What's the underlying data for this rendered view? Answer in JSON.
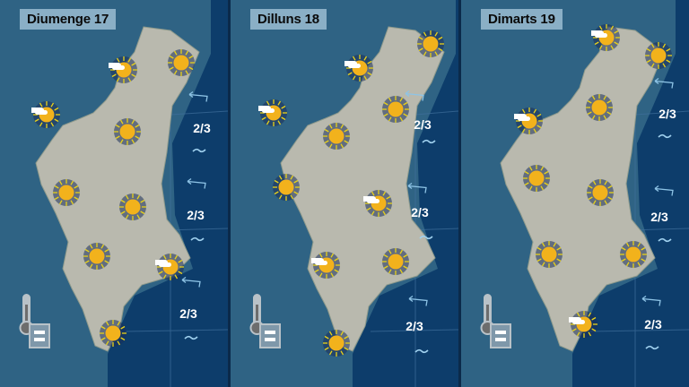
{
  "colors": {
    "sea": "#0d3d6b",
    "inland": "#2f6384",
    "land": "#b9b9ae",
    "sun": "#f2b21c",
    "title_bg": "#aac8dc"
  },
  "panels": [
    {
      "title": "Diumenge 17",
      "forecasts": [
        "sun-cloud",
        "sun",
        "sun-cloud",
        "sun",
        "sun",
        "sun",
        "sun",
        "sun-cloud",
        "sun"
      ],
      "sea": [
        {
          "state": "2/3",
          "wind": "wind-arrow-icon",
          "wave": "wave-icon"
        },
        {
          "state": "2/3",
          "wind": "wind-arrow-icon",
          "wave": "wave-icon"
        },
        {
          "state": "2/3",
          "wind": "wind-arrow-icon",
          "wave": "wave-icon"
        }
      ],
      "temperature": "thermometer-equal-icon"
    },
    {
      "title": "Dilluns 18",
      "forecasts": [
        "sun-cloud",
        "sun",
        "sun-cloud",
        "sun",
        "sun",
        "sun",
        "sun-cloud",
        "sun-cloud",
        "sun",
        "sun"
      ],
      "sea": [
        {
          "state": "2/3",
          "wind": "wind-arrow-icon",
          "wave": "wave-icon"
        },
        {
          "state": "2/3",
          "wind": "wind-arrow-icon",
          "wave": "wave-icon"
        },
        {
          "state": "2/3",
          "wind": "wind-arrow-icon",
          "wave": "wave-icon"
        }
      ],
      "temperature": "thermometer-equal-icon"
    },
    {
      "title": "Dimarts 19",
      "forecasts": [
        "sun-cloud",
        "sun",
        "sun-cloud",
        "sun",
        "sun",
        "sun",
        "sun",
        "sun",
        "sun-cloud"
      ],
      "sea": [
        {
          "state": "2/3",
          "wind": "wind-arrow-icon",
          "wave": "wave-icon"
        },
        {
          "state": "2/3",
          "wind": "wind-arrow-icon",
          "wave": "wave-icon"
        },
        {
          "state": "2/3",
          "wind": "wind-arrow-icon",
          "wave": "wave-icon"
        }
      ],
      "temperature": "thermometer-equal-icon"
    }
  ]
}
